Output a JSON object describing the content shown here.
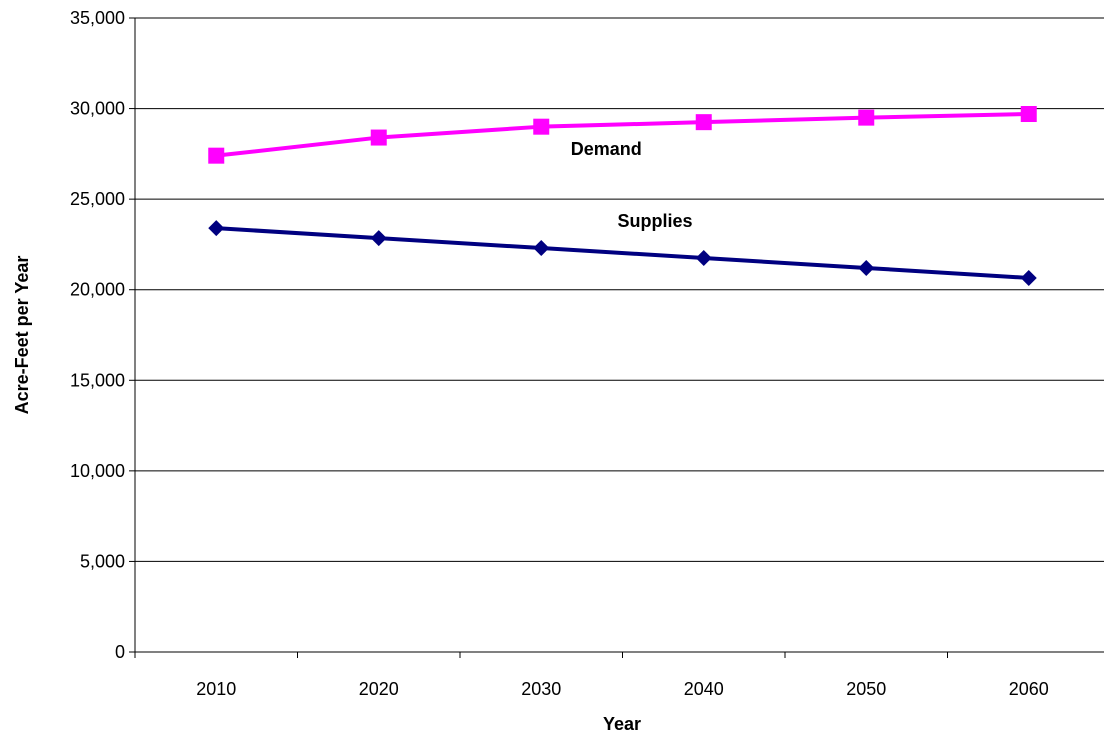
{
  "chart_data": {
    "type": "line",
    "title": "",
    "xlabel": "Year",
    "ylabel": "Acre-Feet per Year",
    "categories": [
      "2010",
      "2020",
      "2030",
      "2040",
      "2050",
      "2060"
    ],
    "ylim": [
      0,
      35000
    ],
    "yticks": [
      0,
      5000,
      10000,
      15000,
      20000,
      25000,
      30000,
      35000
    ],
    "ytick_labels": [
      "0",
      "5,000",
      "10,000",
      "15,000",
      "20,000",
      "25,000",
      "30,000",
      "35,000"
    ],
    "grid": "horizontal",
    "legend": "none",
    "series": [
      {
        "name": "Demand",
        "values": [
          27400,
          28400,
          29000,
          29250,
          29500,
          29700
        ],
        "color": "#FF00FF",
        "marker": "square"
      },
      {
        "name": "Supplies",
        "values": [
          23400,
          22850,
          22300,
          21750,
          21200,
          20650
        ],
        "color": "#000080",
        "marker": "diamond"
      }
    ]
  }
}
